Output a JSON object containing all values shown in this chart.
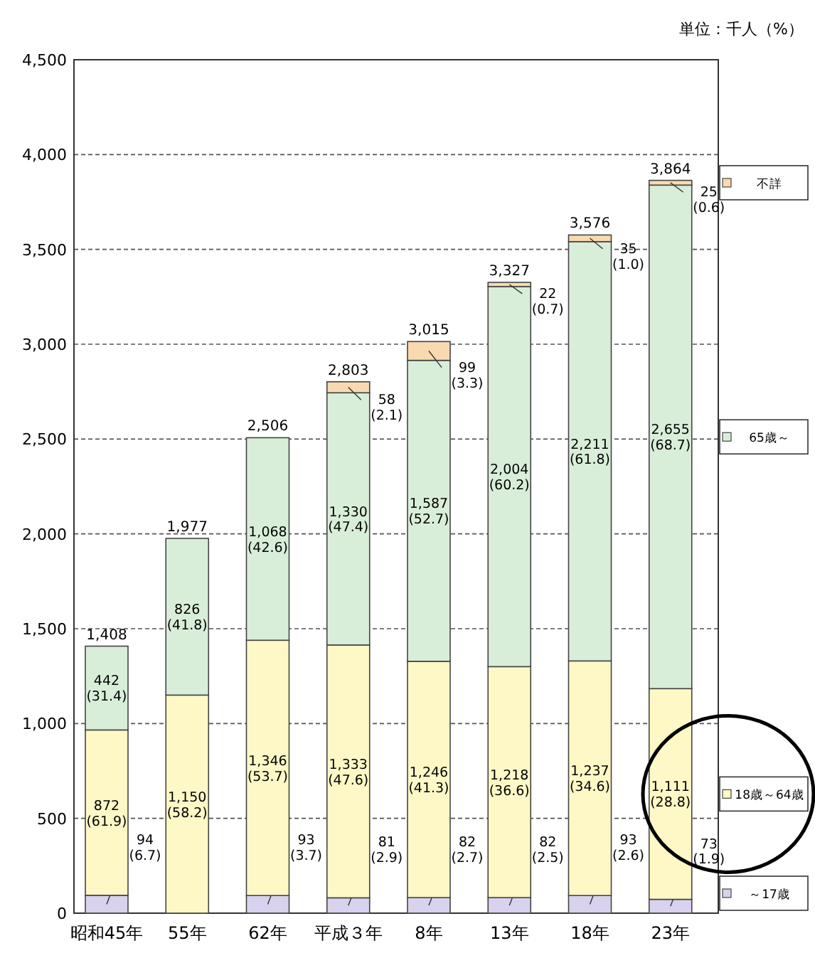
{
  "chart_data": {
    "type": "bar",
    "stacked": true,
    "categories": [
      "昭和45年",
      "55年",
      "62年",
      "平成３年",
      "8年",
      "13年",
      "18年",
      "23年"
    ],
    "series": [
      {
        "name": "～17歳",
        "color": "#d9d2ee",
        "values": [
          94,
          null,
          93,
          81,
          82,
          82,
          93,
          73
        ],
        "value_labels": [
          "94 (6.7)",
          null,
          "93 (3.7)",
          "81 (2.9)",
          "82 (2.7)",
          "82 (2.5)",
          "93 (2.6)",
          "73 (1.9)"
        ]
      },
      {
        "name": "18歳～64歳",
        "color": "#fdf8c6",
        "values": [
          872,
          1150,
          1346,
          1333,
          1246,
          1218,
          1237,
          1111
        ],
        "value_labels": [
          "872 (61.9)",
          "1,150 (58.2)",
          "1,346 (53.7)",
          "1,333 (47.6)",
          "1,246 (41.3)",
          "1,218 (36.6)",
          "1,237 (34.6)",
          "1,111 (28.8)"
        ]
      },
      {
        "name": "65歳～",
        "color": "#d9eed9",
        "values": [
          442,
          826,
          1068,
          1330,
          1587,
          2004,
          2211,
          2655
        ],
        "value_labels": [
          "442 (31.4)",
          "826 (41.8)",
          "1,068 (42.6)",
          "1,330 (47.4)",
          "1,587 (52.7)",
          "2,004 (60.2)",
          "2,211 (61.8)",
          "2,655 (68.7)"
        ]
      },
      {
        "name": "不詳",
        "color": "#f9d9b0",
        "values": [
          null,
          null,
          null,
          58,
          99,
          22,
          35,
          25
        ],
        "value_labels": [
          null,
          null,
          null,
          "58 (2.1)",
          "99 (3.3)",
          "22 (0.7)",
          "35 (1.0)",
          "25 (0.6)"
        ]
      }
    ],
    "totals": [
      "1,408",
      "1,977",
      "2,506",
      "2,803",
      "3,015",
      "3,327",
      "3,576",
      "3,864"
    ],
    "ylim": [
      0,
      4500
    ],
    "yticks": [
      0,
      500,
      {
        "value": 1000,
        "label": "1,000"
      },
      {
        "value": 1500,
        "label": "1,500"
      },
      {
        "value": 2000,
        "label": "2,000"
      },
      {
        "value": 2500,
        "label": "2,500"
      },
      {
        "value": 3000,
        "label": "3,000"
      },
      {
        "value": 3500,
        "label": "3,500"
      },
      {
        "value": 4000,
        "label": "4,000"
      },
      {
        "value": 4500,
        "label": "4,500"
      }
    ],
    "grid": "y",
    "legend": "right",
    "annotations": [
      "単位：千人（%）"
    ]
  }
}
